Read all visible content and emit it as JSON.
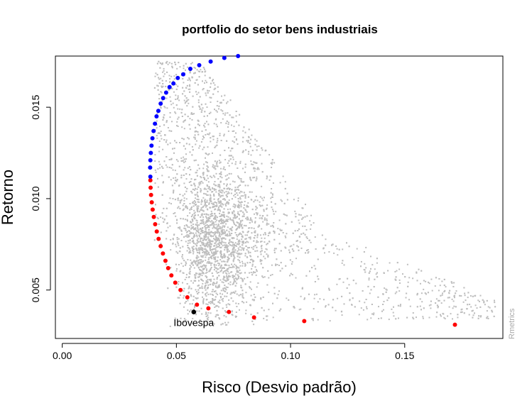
{
  "chart_data": {
    "type": "scatter",
    "title": "portfolio do setor bens industriais",
    "xlabel": "Risco (Desvio padrão)",
    "ylabel": "Retorno",
    "xlim": [
      -0.003,
      0.193
    ],
    "ylim": [
      0.00235,
      0.0178
    ],
    "x_ticks": [
      0.0,
      0.05,
      0.1,
      0.15
    ],
    "x_tick_labels": [
      "0.00",
      "0.05",
      "0.10",
      "0.15"
    ],
    "y_ticks": [
      0.005,
      0.01,
      0.015
    ],
    "y_tick_labels": [
      "0.005",
      "0.010",
      "0.015"
    ],
    "grid": false,
    "colors": {
      "random_portfolios": "#bebebe",
      "efficient_frontier": "#0000ff",
      "inefficient_frontier": "#ff0000",
      "benchmark": "#000000"
    },
    "series": [
      {
        "role": "random_portfolios",
        "count": 4500,
        "note_on_generation": "cloud of simulated portfolios between the frontier and upper-right"
      },
      {
        "role": "efficient_frontier",
        "points": [
          [
            0.0386,
            0.0112
          ],
          [
            0.0385,
            0.0117
          ],
          [
            0.0386,
            0.0121
          ],
          [
            0.0388,
            0.0125
          ],
          [
            0.0391,
            0.0129
          ],
          [
            0.0395,
            0.0133
          ],
          [
            0.04,
            0.0137
          ],
          [
            0.0406,
            0.0141
          ],
          [
            0.0413,
            0.0145
          ],
          [
            0.0421,
            0.0148
          ],
          [
            0.0431,
            0.0152
          ],
          [
            0.0442,
            0.0155
          ],
          [
            0.0455,
            0.0158
          ],
          [
            0.047,
            0.0161
          ],
          [
            0.0487,
            0.0163
          ],
          [
            0.0506,
            0.0166
          ],
          [
            0.053,
            0.0168
          ],
          [
            0.0561,
            0.0171
          ],
          [
            0.06,
            0.0173
          ],
          [
            0.065,
            0.0175
          ],
          [
            0.071,
            0.0177
          ],
          [
            0.077,
            0.0178
          ]
        ]
      },
      {
        "role": "inefficient_frontier",
        "points": [
          [
            0.0386,
            0.011
          ],
          [
            0.0387,
            0.0106
          ],
          [
            0.0389,
            0.0102
          ],
          [
            0.0392,
            0.0098
          ],
          [
            0.0396,
            0.0094
          ],
          [
            0.0401,
            0.009
          ],
          [
            0.0407,
            0.0086
          ],
          [
            0.0414,
            0.0082
          ],
          [
            0.0422,
            0.0078
          ],
          [
            0.0431,
            0.0074
          ],
          [
            0.0441,
            0.007
          ],
          [
            0.0452,
            0.0066
          ],
          [
            0.0464,
            0.0062
          ],
          [
            0.0478,
            0.0058
          ],
          [
            0.0495,
            0.0054
          ],
          [
            0.0518,
            0.005
          ],
          [
            0.0548,
            0.0046
          ],
          [
            0.059,
            0.0042
          ],
          [
            0.064,
            0.004
          ],
          [
            0.073,
            0.0038
          ],
          [
            0.084,
            0.0035
          ],
          [
            0.106,
            0.0033
          ],
          [
            0.172,
            0.0031
          ]
        ]
      },
      {
        "role": "benchmark",
        "name": "Ibovespa",
        "points": [
          [
            0.0576,
            0.0038
          ]
        ]
      }
    ],
    "annotations": [
      {
        "text": "Ibovespa",
        "x": 0.0576,
        "y": 0.0038,
        "position": "below"
      }
    ],
    "watermark": "Rmetrics"
  }
}
